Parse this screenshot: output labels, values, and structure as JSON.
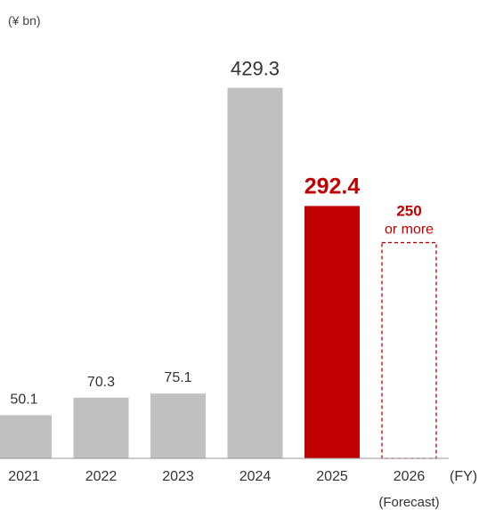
{
  "colors": {
    "bar_default": "#c0c0c0",
    "bar_highlight": "#c00000",
    "forecast_border": "#c00000",
    "label_default": "#333333",
    "label_highlight": "#c00000"
  },
  "chart_data": {
    "type": "bar",
    "unit_label": "(¥ bn)",
    "x_unit_label": "(FY)",
    "categories": [
      "2021",
      "2022",
      "2023",
      "2024",
      "2025",
      "2026"
    ],
    "category_notes": [
      "",
      "",
      "",
      "",
      "",
      "(Forecast)"
    ],
    "values": [
      50.1,
      70.3,
      75.1,
      429.3,
      292.4,
      250
    ],
    "data_labels": [
      "50.1",
      "70.3",
      "75.1",
      "429.3",
      "292.4",
      "250"
    ],
    "data_label_suffix": [
      "",
      "",
      "",
      "",
      "",
      "or more"
    ],
    "highlight_index": 4,
    "forecast_index": 5,
    "ylim": [
      0,
      430
    ],
    "grid": false,
    "legend": "none"
  }
}
